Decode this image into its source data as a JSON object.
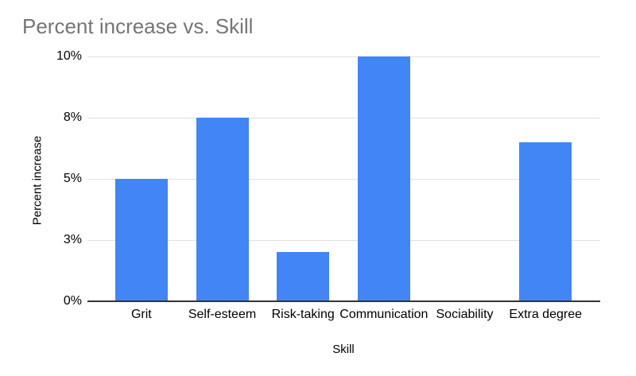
{
  "page": {
    "background": "#ffffff"
  },
  "chart_data": {
    "type": "bar",
    "title": "Percent increase vs. Skill",
    "xlabel": "Skill",
    "ylabel": "Percent increase",
    "categories": [
      "Grit",
      "Self-esteem",
      "Risk-taking",
      "Communication",
      "Sociability",
      "Extra degree"
    ],
    "values": [
      5,
      7.5,
      2,
      10,
      0,
      6.5
    ],
    "ylim": [
      0,
      10
    ],
    "y_ticks": [
      {
        "label": "0%",
        "value": 0
      },
      {
        "label": "3%",
        "value": 2.5
      },
      {
        "label": "5%",
        "value": 5
      },
      {
        "label": "8%",
        "value": 7.5
      },
      {
        "label": "10%",
        "value": 10
      }
    ],
    "grid": true,
    "legend": "none",
    "styles": {
      "bar_color": "#4285f4",
      "gridline_color": "#e0e0e0",
      "axis_line_color": "#333333",
      "title_color": "#757575",
      "axis_text_color": "#000000"
    }
  }
}
